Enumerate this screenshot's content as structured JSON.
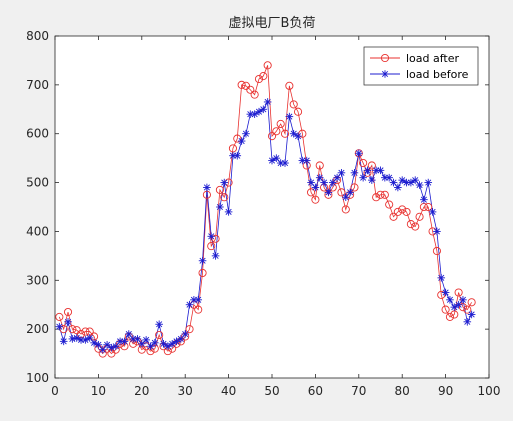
{
  "chart_data": {
    "type": "line",
    "title": "虚拟电厂B负荷",
    "xlabel": "",
    "ylabel": "",
    "xlim": [
      0,
      100
    ],
    "ylim": [
      100,
      800
    ],
    "xticks": [
      "0",
      "10",
      "20",
      "30",
      "40",
      "50",
      "60",
      "70",
      "80",
      "90",
      "100"
    ],
    "yticks": [
      "100",
      "200",
      "300",
      "400",
      "500",
      "600",
      "700",
      "800"
    ],
    "grid": false,
    "legend_position": "top-right",
    "x": [
      1,
      2,
      3,
      4,
      5,
      6,
      7,
      8,
      9,
      10,
      11,
      12,
      13,
      14,
      15,
      16,
      17,
      18,
      19,
      20,
      21,
      22,
      23,
      24,
      25,
      26,
      27,
      28,
      29,
      30,
      31,
      32,
      33,
      34,
      35,
      36,
      37,
      38,
      39,
      40,
      41,
      42,
      43,
      44,
      45,
      46,
      47,
      48,
      49,
      50,
      51,
      52,
      53,
      54,
      55,
      56,
      57,
      58,
      59,
      60,
      61,
      62,
      63,
      64,
      65,
      66,
      67,
      68,
      69,
      70,
      71,
      72,
      73,
      74,
      75,
      76,
      77,
      78,
      79,
      80,
      81,
      82,
      83,
      84,
      85,
      86,
      87,
      88,
      89,
      90,
      91,
      92,
      93,
      94,
      95,
      96
    ],
    "series": [
      {
        "name": "load after",
        "color": "#e8312f",
        "marker": "circle",
        "values": [
          225,
          200,
          235,
          200,
          198,
          190,
          195,
          195,
          185,
          160,
          150,
          160,
          150,
          158,
          170,
          165,
          185,
          170,
          175,
          158,
          165,
          155,
          160,
          188,
          165,
          155,
          160,
          170,
          175,
          185,
          200,
          250,
          240,
          315,
          475,
          370,
          385,
          485,
          470,
          500,
          570,
          590,
          700,
          698,
          690,
          680,
          712,
          718,
          740,
          595,
          605,
          620,
          600,
          698,
          660,
          645,
          600,
          535,
          480,
          465,
          535,
          490,
          475,
          490,
          505,
          480,
          445,
          475,
          490,
          560,
          540,
          520,
          535,
          470,
          475,
          475,
          455,
          430,
          440,
          445,
          440,
          415,
          410,
          430,
          450,
          450,
          400,
          360,
          270,
          240,
          225,
          230,
          275,
          245,
          240,
          255
        ]
      },
      {
        "name": "load before",
        "color": "#1c1ccf",
        "marker": "star",
        "values": [
          205,
          175,
          215,
          180,
          182,
          178,
          178,
          182,
          172,
          168,
          158,
          168,
          162,
          165,
          175,
          175,
          190,
          180,
          180,
          170,
          178,
          165,
          172,
          210,
          170,
          165,
          170,
          175,
          180,
          190,
          250,
          260,
          260,
          340,
          490,
          390,
          350,
          450,
          500,
          440,
          555,
          555,
          585,
          600,
          640,
          640,
          645,
          650,
          665,
          545,
          550,
          540,
          540,
          635,
          600,
          595,
          545,
          545,
          500,
          490,
          510,
          500,
          480,
          500,
          510,
          520,
          470,
          480,
          520,
          560,
          510,
          525,
          505,
          525,
          525,
          510,
          510,
          500,
          490,
          505,
          500,
          500,
          505,
          495,
          465,
          500,
          440,
          400,
          305,
          275,
          260,
          245,
          250,
          260,
          215,
          230
        ]
      }
    ]
  }
}
